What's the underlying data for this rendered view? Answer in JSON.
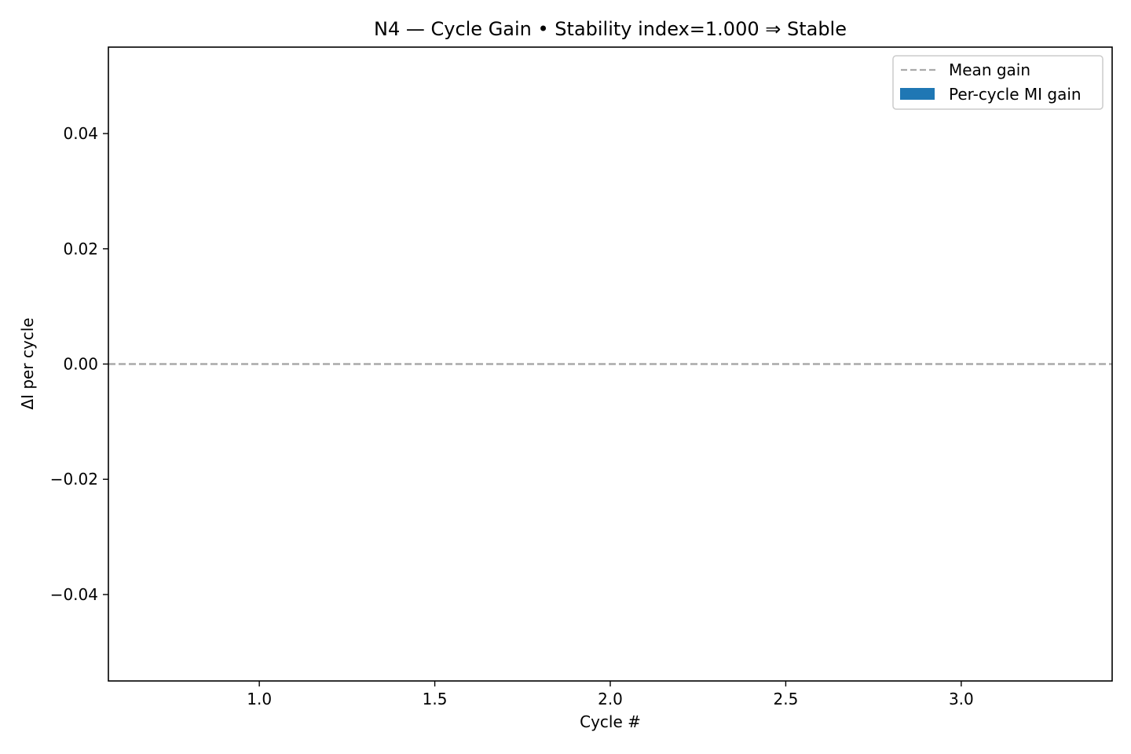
{
  "chart_data": {
    "type": "bar",
    "title": "N4 — Cycle Gain • Stability index=1.000 ⇒ Stable",
    "xlabel": "Cycle #",
    "ylabel": "ΔI per cycle",
    "xlim": [
      0.57,
      3.43
    ],
    "ylim": [
      -0.055,
      0.055
    ],
    "xticks": [
      1.0,
      1.5,
      2.0,
      2.5,
      3.0
    ],
    "xtick_labels": [
      "1.0",
      "1.5",
      "2.0",
      "2.5",
      "3.0"
    ],
    "yticks": [
      -0.04,
      -0.02,
      0.0,
      0.02,
      0.04
    ],
    "ytick_labels": [
      "−0.04",
      "−0.02",
      "0.00",
      "0.02",
      "0.04"
    ],
    "grid": false,
    "legend_position": "top-right",
    "series": [
      {
        "name": "Per-cycle MI gain",
        "kind": "bar",
        "color": "#1f77b4",
        "x": [
          1,
          2,
          3
        ],
        "values": [
          0.0,
          0.0,
          0.0
        ]
      }
    ],
    "reference_lines": [
      {
        "name": "Mean gain",
        "kind": "hline",
        "style": "dashed",
        "color": "#aaaaaa",
        "y": 0.0
      }
    ],
    "legend": {
      "entries": [
        {
          "label": "Mean gain",
          "marker": "dashed-line",
          "color": "#aaaaaa"
        },
        {
          "label": "Per-cycle MI gain",
          "marker": "patch",
          "color": "#1f77b4"
        }
      ]
    }
  }
}
